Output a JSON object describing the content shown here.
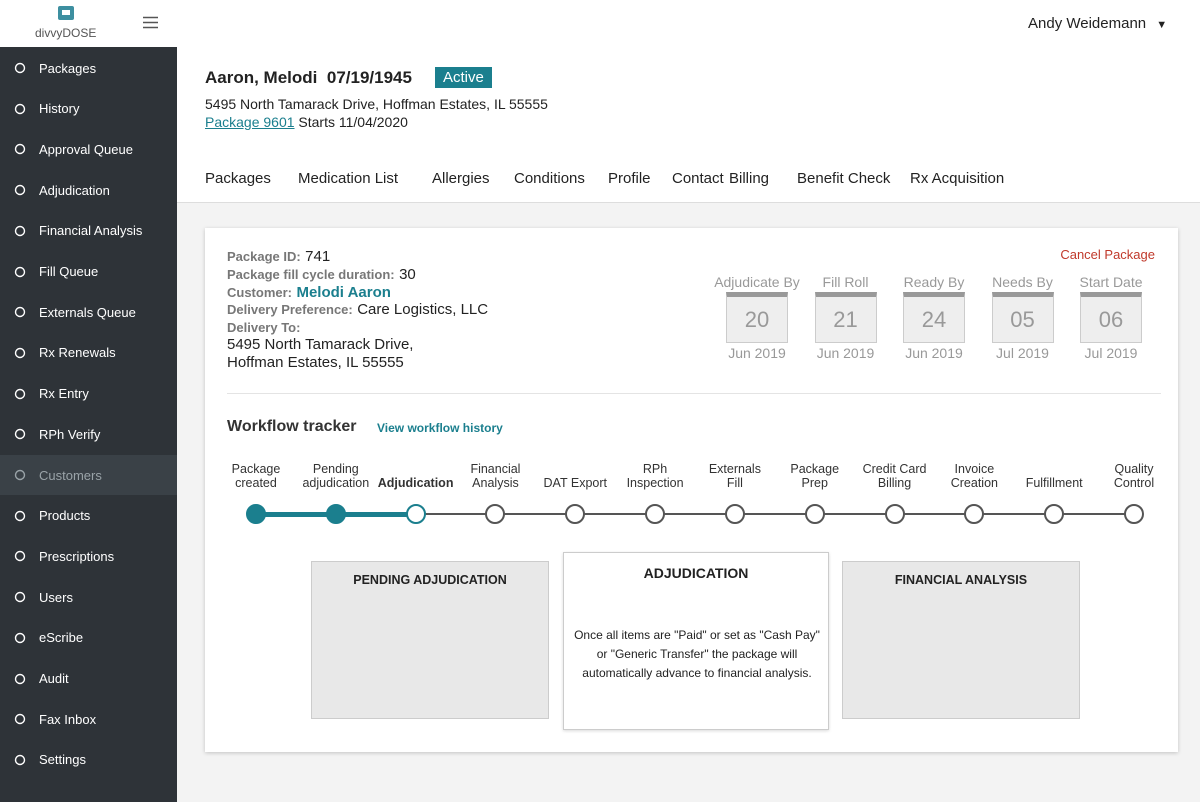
{
  "app": {
    "logo": "divvyDOSE",
    "user": "Andy Weidemann"
  },
  "nav": {
    "items": [
      "Packages",
      "History",
      "Approval Queue",
      "Adjudication",
      "Financial Analysis",
      "Fill Queue",
      "Externals Queue",
      "Rx Renewals",
      "Rx Entry",
      "RPh Verify",
      "Customers",
      "Products",
      "Prescriptions",
      "Users",
      "eScribe",
      "Audit",
      "Fax Inbox",
      "Settings"
    ],
    "active": 10
  },
  "patient": {
    "name": "Aaron, Melodi",
    "dob": "07/19/1945",
    "status": "Active",
    "address": "5495 North Tamarack Drive, Hoffman Estates, IL 55555",
    "package_link": "Package 9601",
    "starts": "Starts 11/04/2020"
  },
  "tabs": [
    "Packages",
    "Medication List",
    "Allergies",
    "Conditions",
    "Profile",
    "Contact",
    "Billing",
    "Benefit Check",
    "Rx Acquisition"
  ],
  "package": {
    "cancel": "Cancel Package",
    "fields": [
      {
        "label": "Package ID:",
        "value": "741"
      },
      {
        "label": "Package fill cycle duration:",
        "value": "30"
      },
      {
        "label": "Customer:",
        "value": "Melodi Aaron",
        "highlight": true
      },
      {
        "label": "Delivery Preference:",
        "value": "Care Logistics, LLC"
      }
    ],
    "delivery_to": {
      "label": "Delivery To:",
      "lines": [
        "5495 North Tamarack Drive,",
        "Hoffman Estates, IL 55555"
      ]
    }
  },
  "dates": [
    {
      "label": "Adjudicate By",
      "day": "20",
      "month": "Jun 2019"
    },
    {
      "label": "Fill Roll",
      "day": "21",
      "month": "Jun 2019"
    },
    {
      "label": "Ready By",
      "day": "24",
      "month": "Jun 2019"
    },
    {
      "label": "Needs By",
      "day": "05",
      "month": "Jul 2019"
    },
    {
      "label": "Start Date",
      "day": "06",
      "month": "Jul 2019"
    }
  ],
  "workflow": {
    "title": "Workflow tracker",
    "link": "View workflow history",
    "steps": [
      {
        "lines": [
          "Package",
          "created"
        ],
        "state": "done"
      },
      {
        "lines": [
          "Pending",
          "adjudication"
        ],
        "state": "done"
      },
      {
        "lines": [
          "Adjudication"
        ],
        "state": "current"
      },
      {
        "lines": [
          "Financial",
          "Analysis"
        ],
        "state": "pending"
      },
      {
        "lines": [
          "DAT Export"
        ],
        "state": "pending"
      },
      {
        "lines": [
          "RPh",
          "Inspection"
        ],
        "state": "pending"
      },
      {
        "lines": [
          "Externals",
          "Fill"
        ],
        "state": "pending"
      },
      {
        "lines": [
          "Package",
          "Prep"
        ],
        "state": "pending"
      },
      {
        "lines": [
          "Credit Card",
          "Billing"
        ],
        "state": "pending"
      },
      {
        "lines": [
          "Invoice",
          "Creation"
        ],
        "state": "pending"
      },
      {
        "lines": [
          "Fulfillment"
        ],
        "state": "pending"
      },
      {
        "lines": [
          "Quality",
          "Control"
        ],
        "state": "pending"
      }
    ]
  },
  "panels": [
    {
      "title": "PENDING ADJUDICATION",
      "state": "past"
    },
    {
      "title": "ADJUDICATION",
      "body": "Once all items are \"Paid\" or set as \"Cash Pay\" or \"Generic Transfer\" the package will automatically advance to financial analysis.",
      "state": "current"
    },
    {
      "title": "FINANCIAL ANALYSIS",
      "state": "next"
    }
  ]
}
